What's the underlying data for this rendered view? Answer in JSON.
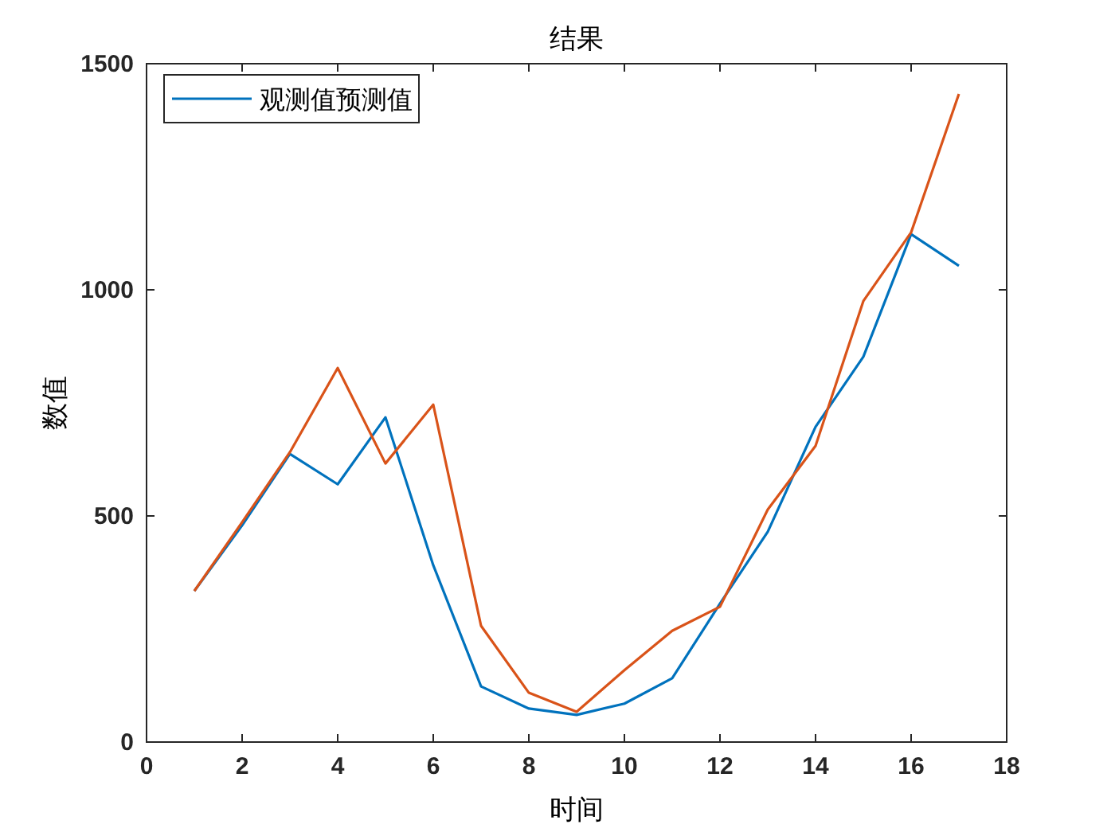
{
  "chart_data": {
    "type": "line",
    "title": "结果",
    "xlabel": "时间",
    "ylabel": "数值",
    "x": [
      1,
      2,
      3,
      4,
      5,
      6,
      7,
      8,
      9,
      10,
      11,
      12,
      13,
      14,
      15,
      16,
      17
    ],
    "series": [
      {
        "name": "观测值预测值",
        "color": "#0072bd",
        "values": [
          334,
          479,
          637,
          570,
          718,
          391,
          123,
          74,
          60,
          85,
          141,
          306,
          465,
          697,
          852,
          1123,
          1053
        ]
      },
      {
        "color": "#d95319",
        "values": [
          334,
          486,
          641,
          827,
          616,
          746,
          257,
          109,
          67,
          159,
          246,
          299,
          514,
          655,
          975,
          1127,
          1433
        ]
      }
    ],
    "xlim": [
      0,
      18
    ],
    "ylim": [
      0,
      1500
    ],
    "xticks": [
      0,
      2,
      4,
      6,
      8,
      10,
      12,
      14,
      16,
      18
    ],
    "yticks": [
      0,
      500,
      1000,
      1500
    ],
    "legend": "top left",
    "grid": false,
    "marker": "none",
    "line_style": "solid"
  }
}
